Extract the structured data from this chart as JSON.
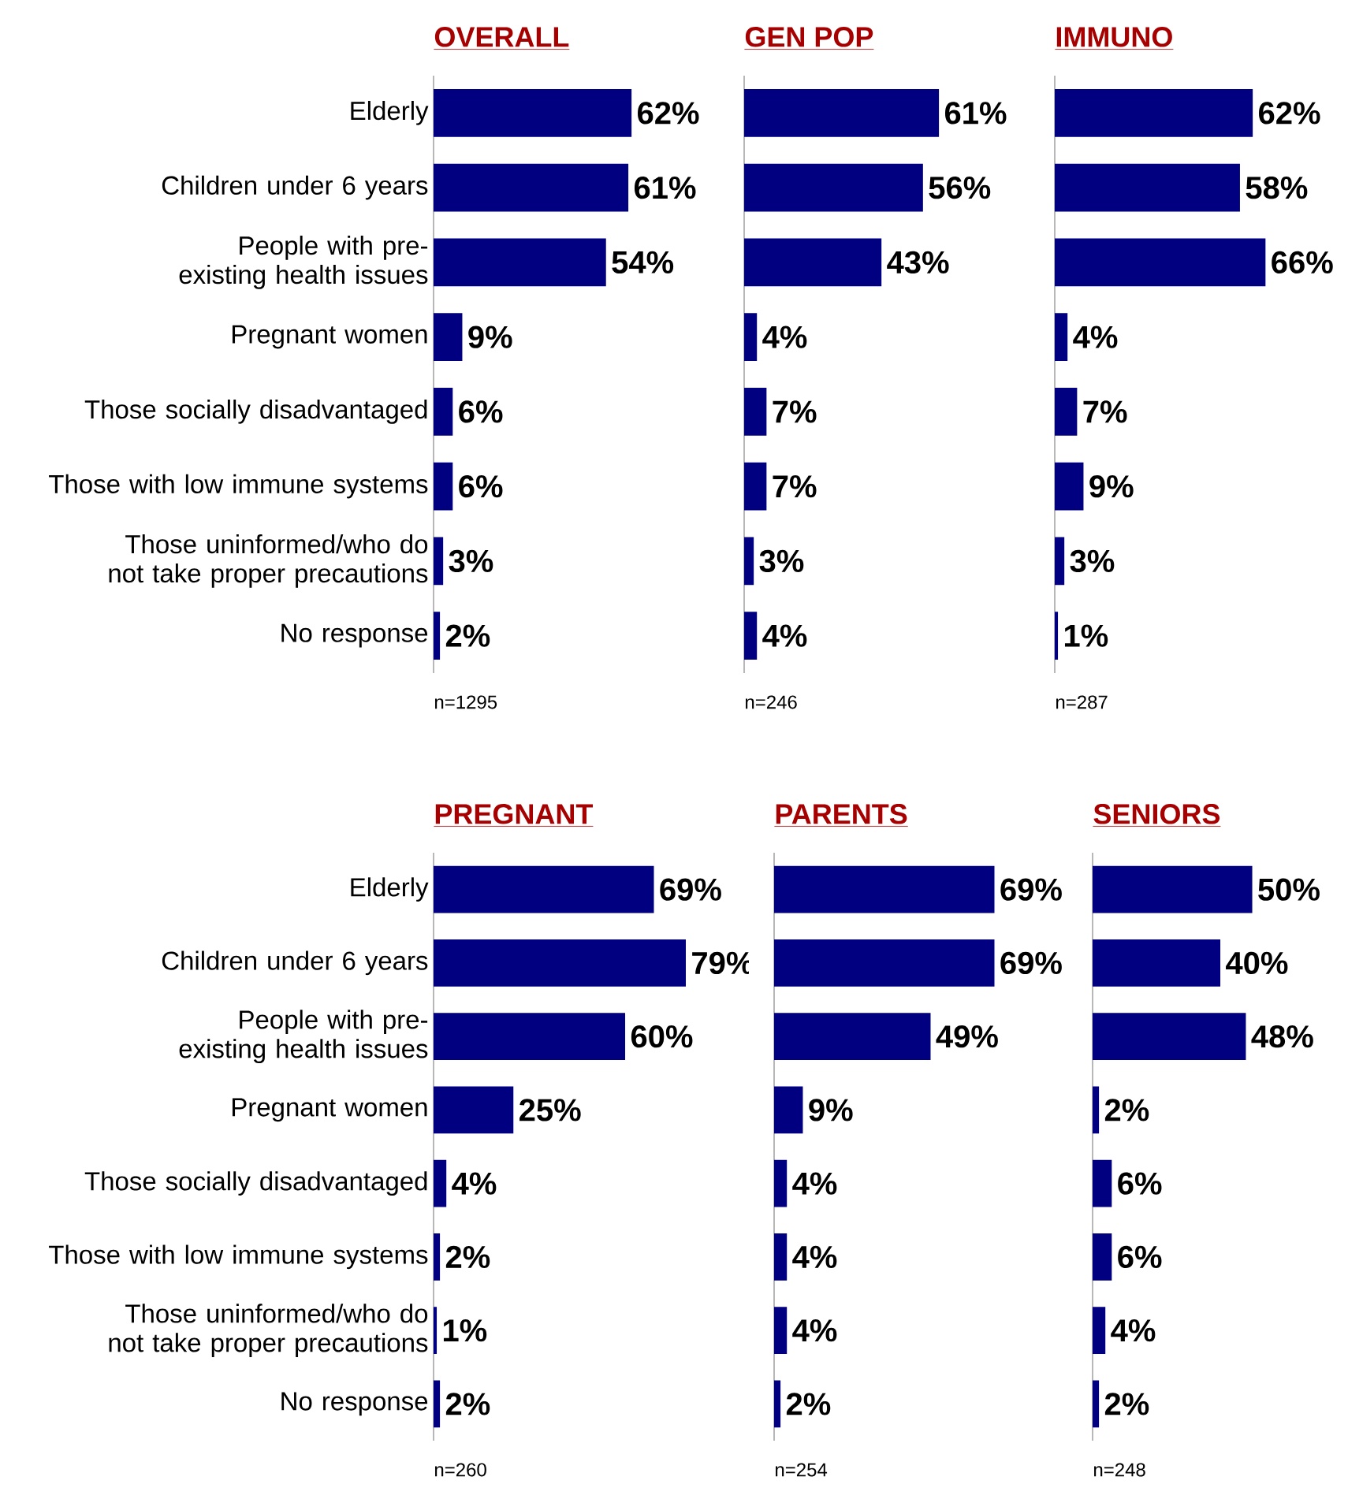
{
  "chart_data": [
    {
      "type": "bar",
      "orientation": "horizontal",
      "title": "OVERALL",
      "color": "#000080",
      "tick_labels": "y",
      "categories": [
        "Elderly",
        "Children under 6 years",
        "People with pre-existing health issues",
        "Pregnant women",
        "Those socially disadvantaged",
        "Those with low immune systems",
        "Those uninformed/who do not take proper precautions",
        "No response"
      ],
      "values": [
        62,
        61,
        54,
        9,
        6,
        6,
        3,
        2
      ],
      "value_labels": [
        "62%",
        "61%",
        "54%",
        "9%",
        "6%",
        "6%",
        "3%",
        "2%"
      ],
      "annotations": [
        "n=1295"
      ]
    },
    {
      "type": "bar",
      "orientation": "horizontal",
      "title": "GEN POP",
      "color": "#000080",
      "tick_labels": false,
      "categories": [
        null,
        null,
        null,
        null,
        null,
        null,
        null,
        null
      ],
      "values": [
        61,
        56,
        43,
        4,
        7,
        7,
        3,
        4
      ],
      "value_labels": [
        "61%",
        "56%",
        "43%",
        "4%",
        "7%",
        "7%",
        "3%",
        "4%"
      ],
      "annotations": [
        "n=246"
      ]
    },
    {
      "type": "bar",
      "orientation": "horizontal",
      "title": "IMMUNO",
      "color": "#000080",
      "tick_labels": false,
      "categories": [
        null,
        null,
        null,
        null,
        null,
        null,
        null,
        null
      ],
      "values": [
        62,
        58,
        66,
        4,
        7,
        9,
        3,
        1
      ],
      "value_labels": [
        "62%",
        "58%",
        "66%",
        "4%",
        "7%",
        "9%",
        "3%",
        "1%"
      ],
      "annotations": [
        "n=287"
      ]
    },
    {
      "type": "bar",
      "orientation": "horizontal",
      "title": "PREGNANT",
      "color": "#000080",
      "tick_labels": "y",
      "categories": [
        "Elderly",
        "Children under 6 years",
        "People with pre-existing health issues",
        "Pregnant women",
        "Those socially disadvantaged",
        "Those with low immune systems",
        "Those uninformed/who do not take proper precautions",
        "No response"
      ],
      "values": [
        69,
        79,
        60,
        25,
        4,
        2,
        1,
        2
      ],
      "value_labels": [
        "69%",
        "79%",
        "60%",
        "25%",
        "4%",
        "2%",
        "1%",
        "2%"
      ],
      "annotations": [
        "n=260"
      ]
    },
    {
      "type": "bar",
      "orientation": "horizontal",
      "title": "PARENTS",
      "color": "#000080",
      "tick_labels": false,
      "categories": [
        null,
        null,
        null,
        null,
        null,
        null,
        null,
        null
      ],
      "values": [
        69,
        69,
        49,
        9,
        4,
        4,
        4,
        2
      ],
      "value_labels": [
        "69%",
        "69%",
        "49%",
        "9%",
        "4%",
        "4%",
        "4%",
        "2%"
      ],
      "annotations": [
        "n=254"
      ]
    },
    {
      "type": "bar",
      "orientation": "horizontal",
      "title": "SENIORS",
      "color": "#000080",
      "tick_labels": false,
      "categories": [
        null,
        null,
        null,
        null,
        null,
        null,
        null,
        null
      ],
      "values": [
        50,
        40,
        48,
        2,
        6,
        6,
        4,
        2
      ],
      "value_labels": [
        "50%",
        "40%",
        "48%",
        "2%",
        "6%",
        "6%",
        "4%",
        "2%"
      ],
      "annotations": [
        "n=248"
      ]
    }
  ]
}
